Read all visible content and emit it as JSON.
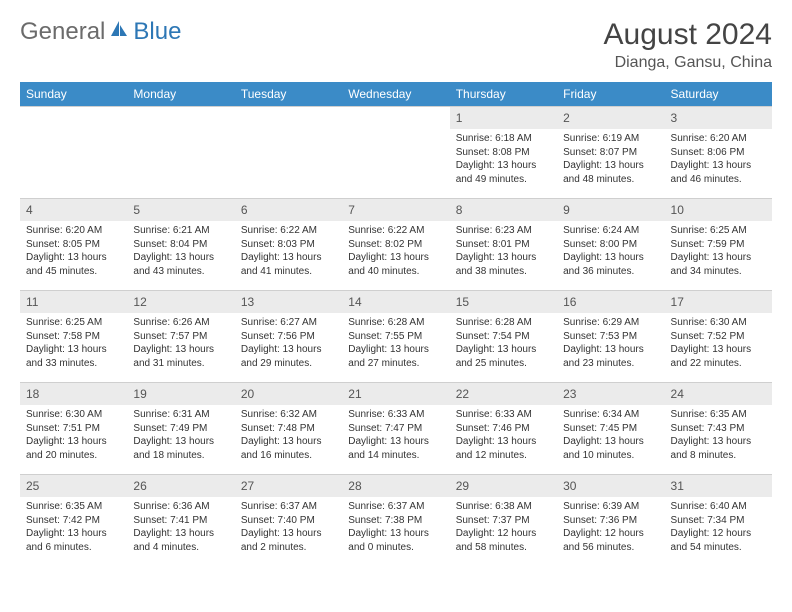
{
  "brand": {
    "text": "General",
    "suffix": "Blue"
  },
  "title": "August 2024",
  "location": "Dianga, Gansu, China",
  "colors": {
    "header_bg": "#3b8bc7",
    "header_text": "#ffffff",
    "daynum_bg": "#ebebeb",
    "border": "#cfcfcf",
    "logo_accent": "#2d77b5"
  },
  "weekdays": [
    "Sunday",
    "Monday",
    "Tuesday",
    "Wednesday",
    "Thursday",
    "Friday",
    "Saturday"
  ],
  "weeks": [
    [
      {
        "empty": true
      },
      {
        "empty": true
      },
      {
        "empty": true
      },
      {
        "empty": true
      },
      {
        "n": "1",
        "sunrise": "6:18 AM",
        "sunset": "8:08 PM",
        "dl": "Daylight: 13 hours and 49 minutes."
      },
      {
        "n": "2",
        "sunrise": "6:19 AM",
        "sunset": "8:07 PM",
        "dl": "Daylight: 13 hours and 48 minutes."
      },
      {
        "n": "3",
        "sunrise": "6:20 AM",
        "sunset": "8:06 PM",
        "dl": "Daylight: 13 hours and 46 minutes."
      }
    ],
    [
      {
        "n": "4",
        "sunrise": "6:20 AM",
        "sunset": "8:05 PM",
        "dl": "Daylight: 13 hours and 45 minutes."
      },
      {
        "n": "5",
        "sunrise": "6:21 AM",
        "sunset": "8:04 PM",
        "dl": "Daylight: 13 hours and 43 minutes."
      },
      {
        "n": "6",
        "sunrise": "6:22 AM",
        "sunset": "8:03 PM",
        "dl": "Daylight: 13 hours and 41 minutes."
      },
      {
        "n": "7",
        "sunrise": "6:22 AM",
        "sunset": "8:02 PM",
        "dl": "Daylight: 13 hours and 40 minutes."
      },
      {
        "n": "8",
        "sunrise": "6:23 AM",
        "sunset": "8:01 PM",
        "dl": "Daylight: 13 hours and 38 minutes."
      },
      {
        "n": "9",
        "sunrise": "6:24 AM",
        "sunset": "8:00 PM",
        "dl": "Daylight: 13 hours and 36 minutes."
      },
      {
        "n": "10",
        "sunrise": "6:25 AM",
        "sunset": "7:59 PM",
        "dl": "Daylight: 13 hours and 34 minutes."
      }
    ],
    [
      {
        "n": "11",
        "sunrise": "6:25 AM",
        "sunset": "7:58 PM",
        "dl": "Daylight: 13 hours and 33 minutes."
      },
      {
        "n": "12",
        "sunrise": "6:26 AM",
        "sunset": "7:57 PM",
        "dl": "Daylight: 13 hours and 31 minutes."
      },
      {
        "n": "13",
        "sunrise": "6:27 AM",
        "sunset": "7:56 PM",
        "dl": "Daylight: 13 hours and 29 minutes."
      },
      {
        "n": "14",
        "sunrise": "6:28 AM",
        "sunset": "7:55 PM",
        "dl": "Daylight: 13 hours and 27 minutes."
      },
      {
        "n": "15",
        "sunrise": "6:28 AM",
        "sunset": "7:54 PM",
        "dl": "Daylight: 13 hours and 25 minutes."
      },
      {
        "n": "16",
        "sunrise": "6:29 AM",
        "sunset": "7:53 PM",
        "dl": "Daylight: 13 hours and 23 minutes."
      },
      {
        "n": "17",
        "sunrise": "6:30 AM",
        "sunset": "7:52 PM",
        "dl": "Daylight: 13 hours and 22 minutes."
      }
    ],
    [
      {
        "n": "18",
        "sunrise": "6:30 AM",
        "sunset": "7:51 PM",
        "dl": "Daylight: 13 hours and 20 minutes."
      },
      {
        "n": "19",
        "sunrise": "6:31 AM",
        "sunset": "7:49 PM",
        "dl": "Daylight: 13 hours and 18 minutes."
      },
      {
        "n": "20",
        "sunrise": "6:32 AM",
        "sunset": "7:48 PM",
        "dl": "Daylight: 13 hours and 16 minutes."
      },
      {
        "n": "21",
        "sunrise": "6:33 AM",
        "sunset": "7:47 PM",
        "dl": "Daylight: 13 hours and 14 minutes."
      },
      {
        "n": "22",
        "sunrise": "6:33 AM",
        "sunset": "7:46 PM",
        "dl": "Daylight: 13 hours and 12 minutes."
      },
      {
        "n": "23",
        "sunrise": "6:34 AM",
        "sunset": "7:45 PM",
        "dl": "Daylight: 13 hours and 10 minutes."
      },
      {
        "n": "24",
        "sunrise": "6:35 AM",
        "sunset": "7:43 PM",
        "dl": "Daylight: 13 hours and 8 minutes."
      }
    ],
    [
      {
        "n": "25",
        "sunrise": "6:35 AM",
        "sunset": "7:42 PM",
        "dl": "Daylight: 13 hours and 6 minutes."
      },
      {
        "n": "26",
        "sunrise": "6:36 AM",
        "sunset": "7:41 PM",
        "dl": "Daylight: 13 hours and 4 minutes."
      },
      {
        "n": "27",
        "sunrise": "6:37 AM",
        "sunset": "7:40 PM",
        "dl": "Daylight: 13 hours and 2 minutes."
      },
      {
        "n": "28",
        "sunrise": "6:37 AM",
        "sunset": "7:38 PM",
        "dl": "Daylight: 13 hours and 0 minutes."
      },
      {
        "n": "29",
        "sunrise": "6:38 AM",
        "sunset": "7:37 PM",
        "dl": "Daylight: 12 hours and 58 minutes."
      },
      {
        "n": "30",
        "sunrise": "6:39 AM",
        "sunset": "7:36 PM",
        "dl": "Daylight: 12 hours and 56 minutes."
      },
      {
        "n": "31",
        "sunrise": "6:40 AM",
        "sunset": "7:34 PM",
        "dl": "Daylight: 12 hours and 54 minutes."
      }
    ]
  ],
  "labels": {
    "sunrise": "Sunrise:",
    "sunset": "Sunset:"
  }
}
